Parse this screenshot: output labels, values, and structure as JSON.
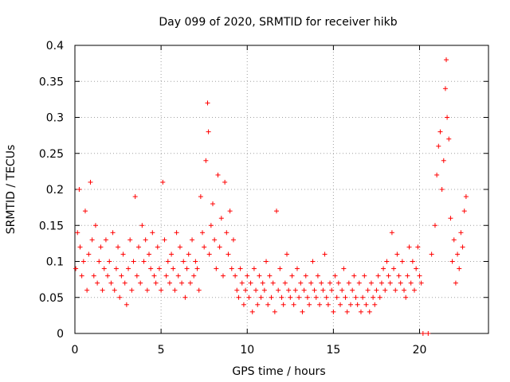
{
  "chart_data": {
    "type": "scatter",
    "title": "Day 099 of 2020, SRMTID for receiver hikb",
    "xlabel": "GPS time / hours",
    "ylabel": "SRMTID / TECUs",
    "xlim": [
      0,
      24
    ],
    "ylim": [
      0,
      0.4
    ],
    "x_ticks": [
      "0",
      "5",
      "10",
      "15",
      "20"
    ],
    "x_tick_values": [
      0,
      5,
      10,
      15,
      20
    ],
    "y_ticks": [
      "0",
      "0.05",
      "0.1",
      "0.15",
      "0.2",
      "0.25",
      "0.3",
      "0.35",
      "0.4"
    ],
    "y_tick_values": [
      0,
      0.05,
      0.1,
      0.15,
      0.2,
      0.25,
      0.3,
      0.35,
      0.4
    ],
    "grid": true,
    "marker": "+",
    "color": "#ff0000",
    "series": [
      {
        "name": "SRMTID",
        "x": [
          0.05,
          0.15,
          0.25,
          0.3,
          0.4,
          0.5,
          0.6,
          0.7,
          0.8,
          0.9,
          1.0,
          1.1,
          1.2,
          1.3,
          1.4,
          1.5,
          1.6,
          1.7,
          1.8,
          1.9,
          2.0,
          2.1,
          2.2,
          2.3,
          2.4,
          2.5,
          2.6,
          2.7,
          2.8,
          2.9,
          3.0,
          3.1,
          3.2,
          3.3,
          3.4,
          3.5,
          3.6,
          3.7,
          3.8,
          3.9,
          4.0,
          4.1,
          4.2,
          4.3,
          4.4,
          4.5,
          4.6,
          4.7,
          4.8,
          4.9,
          5.0,
          5.1,
          5.2,
          5.3,
          5.4,
          5.5,
          5.6,
          5.7,
          5.8,
          5.9,
          6.0,
          6.1,
          6.2,
          6.3,
          6.4,
          6.5,
          6.6,
          6.7,
          6.8,
          6.9,
          7.0,
          7.1,
          7.2,
          7.3,
          7.4,
          7.5,
          7.6,
          7.7,
          7.75,
          7.8,
          7.9,
          8.0,
          8.1,
          8.2,
          8.3,
          8.4,
          8.5,
          8.6,
          8.7,
          8.8,
          8.9,
          9.0,
          9.1,
          9.2,
          9.3,
          9.4,
          9.5,
          9.6,
          9.7,
          9.8,
          9.9,
          10.0,
          10.1,
          10.2,
          10.3,
          10.4,
          10.5,
          10.6,
          10.7,
          10.8,
          10.9,
          11.0,
          11.1,
          11.2,
          11.3,
          11.4,
          11.5,
          11.6,
          11.7,
          11.8,
          11.9,
          12.0,
          12.1,
          12.2,
          12.3,
          12.4,
          12.5,
          12.6,
          12.7,
          12.8,
          12.9,
          13.0,
          13.1,
          13.2,
          13.3,
          13.4,
          13.5,
          13.6,
          13.7,
          13.8,
          13.9,
          14.0,
          14.1,
          14.2,
          14.3,
          14.4,
          14.5,
          14.6,
          14.7,
          14.8,
          14.9,
          15.0,
          15.1,
          15.2,
          15.3,
          15.4,
          15.5,
          15.6,
          15.7,
          15.8,
          15.9,
          16.0,
          16.1,
          16.2,
          16.3,
          16.4,
          16.5,
          16.6,
          16.7,
          16.8,
          16.9,
          17.0,
          17.1,
          17.2,
          17.3,
          17.4,
          17.5,
          17.6,
          17.7,
          17.8,
          17.9,
          18.0,
          18.1,
          18.2,
          18.3,
          18.4,
          18.5,
          18.6,
          18.7,
          18.8,
          18.9,
          19.0,
          19.1,
          19.2,
          19.3,
          19.4,
          19.5,
          19.6,
          19.7,
          19.8,
          19.9,
          20.0,
          20.1,
          20.2,
          20.5,
          20.7,
          20.9,
          21.0,
          21.1,
          21.2,
          21.3,
          21.4,
          21.5,
          21.55,
          21.6,
          21.7,
          21.8,
          21.9,
          22.0,
          22.1,
          22.2,
          22.3,
          22.4,
          22.5,
          22.6,
          22.7
        ],
        "y": [
          0.09,
          0.14,
          0.2,
          0.12,
          0.08,
          0.1,
          0.17,
          0.06,
          0.11,
          0.21,
          0.13,
          0.08,
          0.15,
          0.07,
          0.1,
          0.12,
          0.06,
          0.09,
          0.13,
          0.08,
          0.1,
          0.07,
          0.14,
          0.06,
          0.09,
          0.12,
          0.05,
          0.08,
          0.11,
          0.07,
          0.04,
          0.09,
          0.13,
          0.06,
          0.1,
          0.19,
          0.08,
          0.12,
          0.07,
          0.15,
          0.1,
          0.13,
          0.06,
          0.11,
          0.09,
          0.14,
          0.08,
          0.07,
          0.12,
          0.09,
          0.06,
          0.21,
          0.13,
          0.08,
          0.1,
          0.07,
          0.11,
          0.09,
          0.06,
          0.14,
          0.08,
          0.12,
          0.07,
          0.1,
          0.05,
          0.09,
          0.11,
          0.07,
          0.13,
          0.08,
          0.1,
          0.09,
          0.06,
          0.19,
          0.14,
          0.12,
          0.24,
          0.32,
          0.28,
          0.11,
          0.15,
          0.18,
          0.13,
          0.09,
          0.22,
          0.12,
          0.16,
          0.08,
          0.21,
          0.14,
          0.11,
          0.17,
          0.09,
          0.13,
          0.08,
          0.06,
          0.05,
          0.09,
          0.07,
          0.04,
          0.06,
          0.08,
          0.05,
          0.07,
          0.03,
          0.09,
          0.06,
          0.04,
          0.08,
          0.05,
          0.07,
          0.06,
          0.1,
          0.04,
          0.08,
          0.05,
          0.07,
          0.03,
          0.17,
          0.06,
          0.09,
          0.05,
          0.04,
          0.07,
          0.11,
          0.06,
          0.05,
          0.08,
          0.04,
          0.06,
          0.09,
          0.05,
          0.07,
          0.03,
          0.06,
          0.08,
          0.05,
          0.04,
          0.07,
          0.1,
          0.06,
          0.05,
          0.08,
          0.04,
          0.07,
          0.06,
          0.11,
          0.05,
          0.04,
          0.07,
          0.06,
          0.03,
          0.08,
          0.05,
          0.07,
          0.04,
          0.06,
          0.09,
          0.05,
          0.03,
          0.07,
          0.04,
          0.06,
          0.08,
          0.05,
          0.04,
          0.07,
          0.03,
          0.05,
          0.08,
          0.04,
          0.06,
          0.03,
          0.07,
          0.05,
          0.04,
          0.06,
          0.08,
          0.05,
          0.07,
          0.09,
          0.06,
          0.1,
          0.08,
          0.07,
          0.14,
          0.09,
          0.06,
          0.11,
          0.08,
          0.07,
          0.1,
          0.06,
          0.05,
          0.08,
          0.12,
          0.07,
          0.1,
          0.06,
          0.09,
          0.12,
          0.08,
          0.07,
          0.0,
          0.0,
          0.11,
          0.15,
          0.22,
          0.26,
          0.28,
          0.2,
          0.24,
          0.34,
          0.38,
          0.3,
          0.27,
          0.16,
          0.1,
          0.13,
          0.07,
          0.11,
          0.09,
          0.14,
          0.12,
          0.17,
          0.19
        ]
      }
    ]
  }
}
